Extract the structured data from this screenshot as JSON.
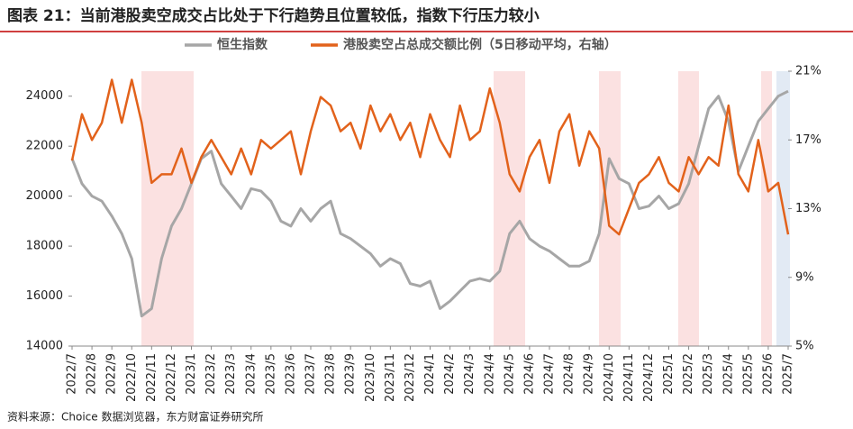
{
  "chart_data": {
    "type": "line",
    "title": "图表 21：当前港股卖空成交占比处于下行趋势且位置较低，指数下行压力较小",
    "source": "资料来源：Choice 数据浏览器，东方财富证券研究所",
    "categories": [
      "2022/7",
      null,
      "2022/8",
      null,
      "2022/9",
      null,
      "2022/10",
      null,
      "2022/11",
      null,
      "2022/12",
      null,
      "2023/1",
      null,
      "2023/2",
      null,
      "2023/3",
      null,
      "2023/4",
      null,
      "2023/5",
      null,
      "2023/6",
      null,
      "2023/7",
      null,
      "2023/8",
      null,
      "2023/9",
      null,
      "2023/10",
      null,
      "2023/11",
      null,
      "2023/12",
      null,
      "2024/1",
      null,
      "2024/2",
      null,
      "2024/3",
      null,
      "2024/4",
      null,
      "2024/5",
      null,
      "2024/6",
      null,
      "2024/7",
      null,
      "2024/8",
      null,
      "2024/9",
      null,
      "2024/10",
      null,
      "2024/11",
      null,
      "2024/12",
      null,
      "2025/1",
      null,
      "2025/2",
      null,
      "2025/3",
      null,
      "2025/4",
      null,
      "2025/5",
      null,
      "2025/6",
      null,
      "2025/7"
    ],
    "series": [
      {
        "name": "恒生指数",
        "color": "#a6a6a6",
        "values": [
          21500,
          20500,
          20000,
          19800,
          19200,
          18500,
          17500,
          15200,
          15500,
          17500,
          18800,
          19500,
          20500,
          21500,
          21800,
          20500,
          20000,
          19500,
          20300,
          20200,
          19800,
          19000,
          18800,
          19500,
          19000,
          19500,
          19800,
          18500,
          18300,
          18000,
          17700,
          17200,
          17500,
          17300,
          16500,
          16400,
          16600,
          15500,
          15800,
          16200,
          16600,
          16700,
          16600,
          17000,
          18500,
          19000,
          18300,
          18000,
          17800,
          17500,
          17200,
          17200,
          17400,
          18500,
          21500,
          20700,
          20500,
          19500,
          19600,
          20000,
          19500,
          19700,
          20500,
          22000,
          23500,
          24000,
          23000,
          21000,
          22000,
          23000,
          23500,
          24000,
          24200
        ]
      },
      {
        "name": "港股卖空占总成交额比例（5日移动平均，右轴）",
        "color": "#e2621b",
        "axis": "y2",
        "values": [
          15.8,
          18.5,
          17,
          18,
          20.5,
          18,
          20.5,
          18,
          14.5,
          15,
          15,
          16.5,
          14.5,
          16,
          17,
          16,
          15,
          16.5,
          15,
          17,
          16.5,
          17,
          17.5,
          15,
          17.5,
          19.5,
          19,
          17.5,
          18,
          16.5,
          19,
          17.5,
          18.5,
          17,
          18,
          16,
          18.5,
          17,
          16,
          19,
          17,
          17.5,
          20,
          18,
          15,
          14,
          16,
          17,
          14.5,
          17.5,
          18.5,
          15.5,
          17.5,
          16.5,
          12,
          11.5,
          13,
          14.5,
          15,
          16,
          14.5,
          14,
          16,
          15,
          16,
          15.5,
          19,
          15,
          14,
          17,
          14,
          14.5,
          11.5
        ]
      }
    ],
    "ylim": [
      14000,
      25000
    ],
    "yticks": [
      14000,
      16000,
      18000,
      20000,
      22000,
      24000
    ],
    "y2lim": [
      5,
      21
    ],
    "y2ticks": [
      {
        "value": 5,
        "label": "5%"
      },
      {
        "value": 9,
        "label": "9%"
      },
      {
        "value": 13,
        "label": "13%"
      },
      {
        "value": 17,
        "label": "17%"
      },
      {
        "value": 21,
        "label": "21%"
      }
    ]
  }
}
